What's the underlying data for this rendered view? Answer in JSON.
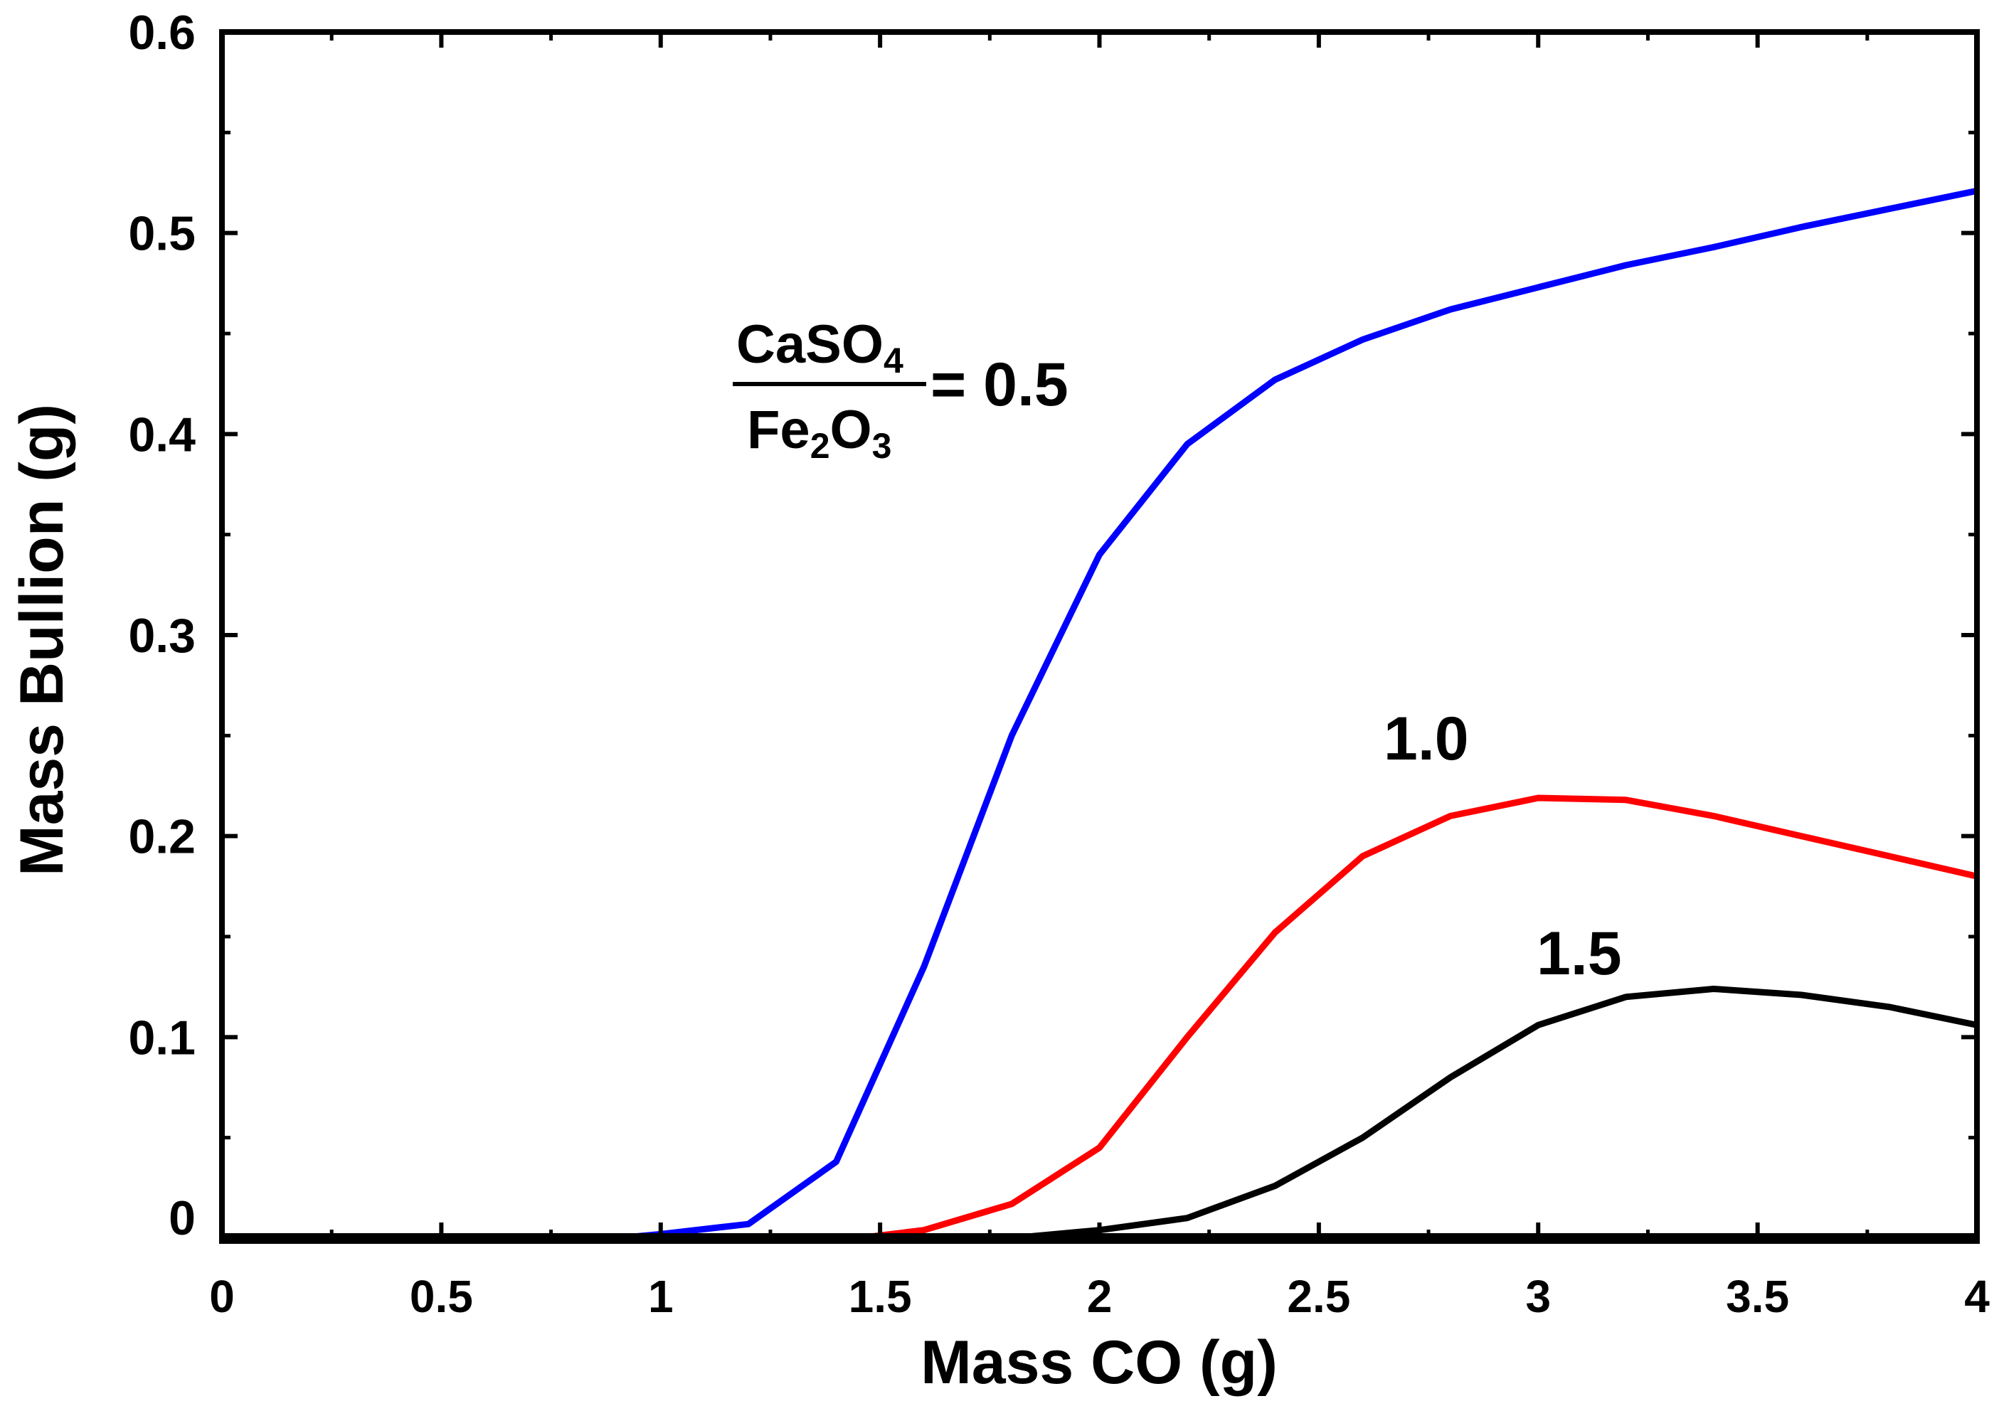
{
  "chart_data": {
    "type": "line",
    "title": "",
    "xlabel": "Mass CO (g)",
    "ylabel": "Mass Bullion (g)",
    "xlim": [
      0,
      4
    ],
    "ylim": [
      0,
      0.6
    ],
    "xticks": [
      "0",
      "0.5",
      "1",
      "1.5",
      "2",
      "2.5",
      "3",
      "3.5",
      "4"
    ],
    "xtick_values": [
      0,
      0.5,
      1,
      1.5,
      2,
      2.5,
      3,
      3.5,
      4
    ],
    "yticks": [
      "0",
      "0.1",
      "0.2",
      "0.3",
      "0.4",
      "0.5",
      "0.6"
    ],
    "ytick_values": [
      0,
      0.1,
      0.2,
      0.3,
      0.4,
      0.5,
      0.6
    ],
    "grid": false,
    "annotation": {
      "numerator": "CaSO",
      "numerator_sub": "4",
      "denominator_a": "Fe",
      "denominator_sub1": "2",
      "denominator_b": "O",
      "denominator_sub2": "3",
      "equals": "= 0.5"
    },
    "series": [
      {
        "name": "0.5",
        "label": "",
        "color": "#0000ff",
        "x": [
          0.9,
          1.0,
          1.2,
          1.4,
          1.6,
          1.8,
          2.0,
          2.2,
          2.4,
          2.6,
          2.8,
          3.0,
          3.2,
          3.4,
          3.6,
          3.8,
          4.0
        ],
        "y": [
          0,
          0.002,
          0.007,
          0.038,
          0.135,
          0.25,
          0.34,
          0.395,
          0.427,
          0.447,
          0.462,
          0.473,
          0.484,
          0.493,
          0.503,
          0.512,
          0.521
        ]
      },
      {
        "name": "1.0",
        "label": "1.0",
        "color": "#ff0000",
        "x": [
          1.45,
          1.6,
          1.8,
          2.0,
          2.2,
          2.4,
          2.6,
          2.8,
          3.0,
          3.2,
          3.4,
          3.6,
          3.8,
          4.0
        ],
        "y": [
          0,
          0.004,
          0.017,
          0.045,
          0.1,
          0.152,
          0.19,
          0.21,
          0.219,
          0.218,
          0.21,
          0.2,
          0.19,
          0.18
        ]
      },
      {
        "name": "1.5",
        "label": "1.5",
        "color": "#000000",
        "x": [
          0,
          1.8,
          2.0,
          2.2,
          2.4,
          2.6,
          2.8,
          3.0,
          3.2,
          3.4,
          3.6,
          3.8,
          4.0
        ],
        "y": [
          0,
          0,
          0.004,
          0.01,
          0.026,
          0.05,
          0.08,
          0.106,
          0.12,
          0.124,
          0.121,
          0.115,
          0.106
        ]
      }
    ]
  }
}
